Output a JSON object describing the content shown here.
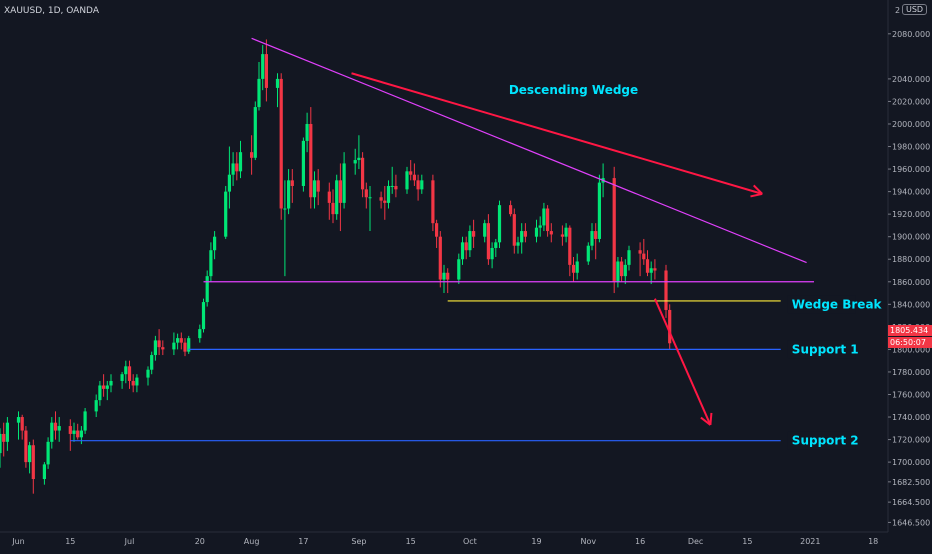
{
  "header": {
    "symbol": "XAUUSD, 1D, OANDA",
    "currency": "USD",
    "top_price_label": "2"
  },
  "price_tags": {
    "last_price": "1805.434",
    "countdown": "06:50:07"
  },
  "colors": {
    "background": "#131722",
    "up": "#26a69a",
    "up_bright": "#00e676",
    "down": "#f23645",
    "wedge_line": "#e040fb",
    "break_line": "#ffeb3b",
    "support_line": "#2962ff",
    "arrow": "#ff1744",
    "annotation_text": "#00e5ff"
  },
  "chart_data": {
    "type": "candlestick",
    "title": "",
    "xlabel": "",
    "ylabel": "",
    "ylim": [
      1638,
      2110
    ],
    "y_ticks": [
      2080,
      2040,
      2020,
      2000,
      1980,
      1960,
      1940,
      1920,
      1900,
      1880,
      1860,
      1840,
      1820,
      1800,
      1780,
      1760,
      1740,
      1720,
      1700,
      1682.5,
      1664.5,
      1646.5
    ],
    "y_tick_labels": [
      "2080.000",
      "2040.000",
      "2020.000",
      "2000.000",
      "1980.000",
      "1960.000",
      "1940.000",
      "1920.000",
      "1900.000",
      "1880.000",
      "1860.000",
      "1840.000",
      "1820.000",
      "1800.000",
      "1780.000",
      "1760.000",
      "1740.000",
      "1720.000",
      "1700.000",
      "1682.500",
      "1664.500",
      "1646.500"
    ],
    "x_range": [
      "2020-05-27",
      "2021-01-22"
    ],
    "x_ticks": [
      {
        "date": "2020-06-01",
        "label": "Jun"
      },
      {
        "date": "2020-06-15",
        "label": "15"
      },
      {
        "date": "2020-07-01",
        "label": "Jul"
      },
      {
        "date": "2020-07-20",
        "label": "20"
      },
      {
        "date": "2020-08-03",
        "label": "Aug"
      },
      {
        "date": "2020-08-17",
        "label": "17"
      },
      {
        "date": "2020-09-01",
        "label": "Sep"
      },
      {
        "date": "2020-09-15",
        "label": "15"
      },
      {
        "date": "2020-10-01",
        "label": "Oct"
      },
      {
        "date": "2020-10-19",
        "label": "19"
      },
      {
        "date": "2020-11-02",
        "label": "Nov"
      },
      {
        "date": "2020-11-16",
        "label": "16"
      },
      {
        "date": "2020-12-01",
        "label": "Dec"
      },
      {
        "date": "2020-12-15",
        "label": "15"
      },
      {
        "date": "2021-01-01",
        "label": "2021"
      },
      {
        "date": "2021-01-18",
        "label": "18"
      }
    ],
    "candles": [
      [
        "2020-05-27",
        1708,
        1730,
        1695,
        1725
      ],
      [
        "2020-05-28",
        1725,
        1735,
        1705,
        1718
      ],
      [
        "2020-05-29",
        1718,
        1740,
        1710,
        1735
      ],
      [
        "2020-06-01",
        1735,
        1745,
        1720,
        1740
      ],
      [
        "2020-06-02",
        1740,
        1742,
        1720,
        1728
      ],
      [
        "2020-06-03",
        1728,
        1732,
        1695,
        1700
      ],
      [
        "2020-06-04",
        1700,
        1718,
        1690,
        1715
      ],
      [
        "2020-06-05",
        1715,
        1720,
        1672,
        1685
      ],
      [
        "2020-06-08",
        1685,
        1700,
        1680,
        1698
      ],
      [
        "2020-06-09",
        1698,
        1722,
        1694,
        1718
      ],
      [
        "2020-06-10",
        1718,
        1740,
        1712,
        1735
      ],
      [
        "2020-06-11",
        1735,
        1745,
        1720,
        1728
      ],
      [
        "2020-06-12",
        1728,
        1740,
        1718,
        1732
      ],
      [
        "2020-06-15",
        1732,
        1738,
        1710,
        1725
      ],
      [
        "2020-06-16",
        1725,
        1735,
        1718,
        1728
      ],
      [
        "2020-06-17",
        1728,
        1734,
        1720,
        1722
      ],
      [
        "2020-06-18",
        1722,
        1732,
        1716,
        1728
      ],
      [
        "2020-06-19",
        1728,
        1748,
        1725,
        1745
      ],
      [
        "2020-06-22",
        1745,
        1760,
        1740,
        1755
      ],
      [
        "2020-06-23",
        1755,
        1772,
        1750,
        1768
      ],
      [
        "2020-06-24",
        1768,
        1778,
        1758,
        1765
      ],
      [
        "2020-06-25",
        1765,
        1772,
        1755,
        1768
      ],
      [
        "2020-06-26",
        1768,
        1778,
        1762,
        1772
      ],
      [
        "2020-06-29",
        1772,
        1780,
        1765,
        1778
      ],
      [
        "2020-06-30",
        1778,
        1790,
        1770,
        1785
      ],
      [
        "2020-07-01",
        1785,
        1790,
        1765,
        1772
      ],
      [
        "2020-07-02",
        1772,
        1778,
        1762,
        1768
      ],
      [
        "2020-07-03",
        1768,
        1778,
        1762,
        1775
      ],
      [
        "2020-07-06",
        1775,
        1785,
        1768,
        1782
      ],
      [
        "2020-07-07",
        1782,
        1798,
        1778,
        1795
      ],
      [
        "2020-07-08",
        1795,
        1812,
        1790,
        1808
      ],
      [
        "2020-07-09",
        1808,
        1818,
        1795,
        1802
      ],
      [
        "2020-07-10",
        1802,
        1808,
        1795,
        1800
      ],
      [
        "2020-07-13",
        1800,
        1815,
        1795,
        1806
      ],
      [
        "2020-07-14",
        1806,
        1814,
        1800,
        1810
      ],
      [
        "2020-07-15",
        1810,
        1815,
        1800,
        1806
      ],
      [
        "2020-07-16",
        1806,
        1810,
        1794,
        1798
      ],
      [
        "2020-07-17",
        1798,
        1812,
        1796,
        1810
      ],
      [
        "2020-07-20",
        1810,
        1822,
        1806,
        1818
      ],
      [
        "2020-07-21",
        1818,
        1845,
        1815,
        1842
      ],
      [
        "2020-07-22",
        1842,
        1870,
        1838,
        1865
      ],
      [
        "2020-07-23",
        1865,
        1895,
        1860,
        1888
      ],
      [
        "2020-07-24",
        1888,
        1905,
        1880,
        1900
      ],
      [
        "2020-07-27",
        1900,
        1945,
        1898,
        1940
      ],
      [
        "2020-07-28",
        1940,
        1980,
        1925,
        1955
      ],
      [
        "2020-07-29",
        1955,
        1975,
        1945,
        1965
      ],
      [
        "2020-07-30",
        1965,
        1975,
        1950,
        1958
      ],
      [
        "2020-07-31",
        1958,
        1985,
        1952,
        1975
      ],
      [
        "2020-08-03",
        1975,
        1990,
        1955,
        1970
      ],
      [
        "2020-08-04",
        1970,
        2020,
        1968,
        2015
      ],
      [
        "2020-08-05",
        2015,
        2055,
        2012,
        2040
      ],
      [
        "2020-08-06",
        2040,
        2070,
        2030,
        2062
      ],
      [
        "2020-08-07",
        2062,
        2075,
        2020,
        2032
      ],
      [
        "2020-08-10",
        2032,
        2045,
        2015,
        2040
      ],
      [
        "2020-08-11",
        2040,
        2045,
        1915,
        1925
      ],
      [
        "2020-08-12",
        1925,
        1950,
        1865,
        1925
      ],
      [
        "2020-08-13",
        1925,
        1960,
        1920,
        1950
      ],
      [
        "2020-08-14",
        1950,
        1960,
        1930,
        1945
      ],
      [
        "2020-08-17",
        1945,
        1988,
        1940,
        1985
      ],
      [
        "2020-08-18",
        1985,
        2010,
        1975,
        2000
      ],
      [
        "2020-08-19",
        2000,
        2015,
        1925,
        1935
      ],
      [
        "2020-08-20",
        1935,
        1958,
        1925,
        1950
      ],
      [
        "2020-08-21",
        1950,
        1960,
        1928,
        1940
      ],
      [
        "2020-08-24",
        1940,
        1948,
        1915,
        1930
      ],
      [
        "2020-08-25",
        1930,
        1942,
        1912,
        1920
      ],
      [
        "2020-08-26",
        1920,
        1955,
        1915,
        1950
      ],
      [
        "2020-08-27",
        1950,
        1965,
        1905,
        1930
      ],
      [
        "2020-08-28",
        1930,
        1975,
        1925,
        1965
      ],
      [
        "2020-08-31",
        1965,
        1978,
        1955,
        1968
      ],
      [
        "2020-09-01",
        1968,
        1990,
        1960,
        1970
      ],
      [
        "2020-09-02",
        1970,
        1975,
        1935,
        1942
      ],
      [
        "2020-09-03",
        1942,
        1948,
        1925,
        1935
      ],
      [
        "2020-09-04",
        1935,
        1945,
        1905,
        1935
      ],
      [
        "2020-09-07",
        1935,
        1940,
        1925,
        1932
      ],
      [
        "2020-09-08",
        1932,
        1945,
        1915,
        1930
      ],
      [
        "2020-09-09",
        1930,
        1950,
        1925,
        1945
      ],
      [
        "2020-09-10",
        1945,
        1962,
        1938,
        1945
      ],
      [
        "2020-09-11",
        1945,
        1955,
        1935,
        1942
      ],
      [
        "2020-09-14",
        1942,
        1962,
        1938,
        1958
      ],
      [
        "2020-09-15",
        1958,
        1968,
        1950,
        1955
      ],
      [
        "2020-09-16",
        1955,
        1965,
        1945,
        1950
      ],
      [
        "2020-09-17",
        1950,
        1955,
        1932,
        1942
      ],
      [
        "2020-09-18",
        1942,
        1955,
        1938,
        1950
      ],
      [
        "2020-09-21",
        1950,
        1955,
        1905,
        1912
      ],
      [
        "2020-09-22",
        1912,
        1915,
        1890,
        1900
      ],
      [
        "2020-09-23",
        1900,
        1905,
        1855,
        1862
      ],
      [
        "2020-09-24",
        1862,
        1875,
        1850,
        1868
      ],
      [
        "2020-09-25",
        1868,
        1872,
        1850,
        1862
      ],
      [
        "2020-09-28",
        1862,
        1885,
        1858,
        1880
      ],
      [
        "2020-09-29",
        1880,
        1900,
        1875,
        1895
      ],
      [
        "2020-09-30",
        1895,
        1900,
        1880,
        1888
      ],
      [
        "2020-10-01",
        1888,
        1910,
        1882,
        1905
      ],
      [
        "2020-10-02",
        1905,
        1915,
        1890,
        1900
      ],
      [
        "2020-10-05",
        1900,
        1915,
        1895,
        1912
      ],
      [
        "2020-10-06",
        1912,
        1920,
        1875,
        1880
      ],
      [
        "2020-10-07",
        1880,
        1895,
        1872,
        1890
      ],
      [
        "2020-10-08",
        1890,
        1898,
        1882,
        1895
      ],
      [
        "2020-10-09",
        1895,
        1932,
        1890,
        1928
      ],
      [
        "2020-10-12",
        1928,
        1932,
        1918,
        1920
      ],
      [
        "2020-10-13",
        1920,
        1925,
        1885,
        1892
      ],
      [
        "2020-10-14",
        1892,
        1900,
        1885,
        1895
      ],
      [
        "2020-10-15",
        1895,
        1912,
        1885,
        1905
      ],
      [
        "2020-10-16",
        1905,
        1912,
        1895,
        1900
      ],
      [
        "2020-10-19",
        1900,
        1915,
        1895,
        1908
      ],
      [
        "2020-10-20",
        1908,
        1918,
        1900,
        1910
      ],
      [
        "2020-10-21",
        1910,
        1930,
        1905,
        1925
      ],
      [
        "2020-10-22",
        1925,
        1928,
        1900,
        1905
      ],
      [
        "2020-10-23",
        1905,
        1912,
        1895,
        1902
      ],
      [
        "2020-10-26",
        1902,
        1910,
        1892,
        1900
      ],
      [
        "2020-10-27",
        1900,
        1912,
        1895,
        1908
      ],
      [
        "2020-10-28",
        1908,
        1910,
        1865,
        1875
      ],
      [
        "2020-10-29",
        1875,
        1882,
        1860,
        1868
      ],
      [
        "2020-10-30",
        1868,
        1885,
        1862,
        1878
      ],
      [
        "2020-11-02",
        1878,
        1895,
        1875,
        1892
      ],
      [
        "2020-11-03",
        1892,
        1912,
        1888,
        1905
      ],
      [
        "2020-11-04",
        1905,
        1912,
        1880,
        1898
      ],
      [
        "2020-11-05",
        1898,
        1955,
        1895,
        1948
      ],
      [
        "2020-11-06",
        1948,
        1965,
        1935,
        1952
      ],
      [
        "2020-11-09",
        1952,
        1962,
        1850,
        1860
      ],
      [
        "2020-11-10",
        1860,
        1882,
        1855,
        1878
      ],
      [
        "2020-11-11",
        1878,
        1882,
        1860,
        1865
      ],
      [
        "2020-11-12",
        1865,
        1880,
        1858,
        1875
      ],
      [
        "2020-11-13",
        1875,
        1892,
        1870,
        1888
      ],
      [
        "2020-11-16",
        1888,
        1895,
        1865,
        1885
      ],
      [
        "2020-11-17",
        1885,
        1898,
        1875,
        1880
      ],
      [
        "2020-11-18",
        1880,
        1888,
        1865,
        1868
      ],
      [
        "2020-11-19",
        1868,
        1878,
        1858,
        1872
      ],
      [
        "2020-11-20",
        1872,
        1880,
        1862,
        1870
      ],
      [
        "2020-11-23",
        1870,
        1875,
        1828,
        1835
      ],
      [
        "2020-11-24",
        1835,
        1840,
        1800,
        1805.434
      ]
    ],
    "trendlines": [
      {
        "name": "wedge-upper",
        "from": [
          "2020-08-03",
          2076
        ],
        "to": [
          "2020-12-31",
          1877
        ]
      },
      {
        "name": "wedge-lower",
        "from": [
          "2020-07-21",
          1860
        ],
        "to": [
          "2021-01-02",
          1860
        ]
      },
      {
        "name": "wedge-break",
        "from": [
          "2020-09-25",
          1843
        ],
        "to": [
          "2020-12-24",
          1843
        ]
      },
      {
        "name": "support-1",
        "from": [
          "2020-07-17",
          1800
        ],
        "to": [
          "2020-12-24",
          1800
        ]
      },
      {
        "name": "support-2",
        "from": [
          "2020-06-15",
          1719
        ],
        "to": [
          "2020-12-24",
          1719
        ]
      }
    ],
    "arrows": [
      {
        "name": "wedge-direction-arrow",
        "from": [
          "2020-08-30",
          2045
        ],
        "to": [
          "2020-12-19",
          1938
        ]
      },
      {
        "name": "forecast-arrow",
        "from": [
          "2020-11-20",
          1845
        ],
        "to": [
          "2020-12-05",
          1733
        ]
      }
    ],
    "annotations": [
      {
        "name": "descending-wedge-label",
        "text": "Descending Wedge",
        "at": [
          "2020-10-29",
          2030
        ]
      },
      {
        "name": "wedge-break-label",
        "text": "Wedge Break",
        "at": [
          "2020-12-27",
          1840
        ]
      },
      {
        "name": "support-1-label",
        "text": "Support 1",
        "at": [
          "2020-12-27",
          1800
        ]
      },
      {
        "name": "support-2-label",
        "text": "Support 2",
        "at": [
          "2020-12-27",
          1719
        ]
      }
    ],
    "grid": false,
    "legend": "none"
  }
}
